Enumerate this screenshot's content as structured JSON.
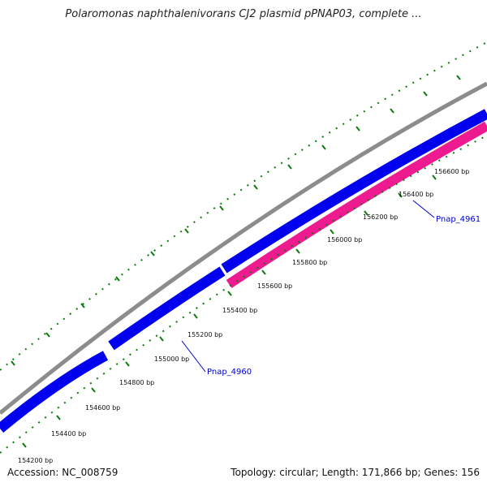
{
  "title": "Polaromonas naphthalenivorans CJ2 plasmid pPNAP03, complete ...",
  "footer": {
    "accession": "Accession: NC_008759",
    "topology": "Topology: circular; Length: 171,866 bp; Genes: 156"
  },
  "colors": {
    "backbone": "#8c8c8c",
    "forward_gene": "#0000ee",
    "reverse_gene": "#ee1a8f",
    "tick": "#0a7a0a",
    "label": "#0000cc"
  },
  "ticks": [
    "154200 bp",
    "154400 bp",
    "154600 bp",
    "154800 bp",
    "155000 bp",
    "155200 bp",
    "155400 bp",
    "155600 bp",
    "155800 bp",
    "156000 bp",
    "156200 bp",
    "156400 bp",
    "156600 bp"
  ],
  "genes": [
    {
      "name": "Pnap_4960",
      "strand": "forward"
    },
    {
      "name": "Pnap_4961",
      "strand": "forward"
    },
    {
      "name": "",
      "strand": "reverse"
    },
    {
      "name": "",
      "strand": "forward"
    }
  ]
}
